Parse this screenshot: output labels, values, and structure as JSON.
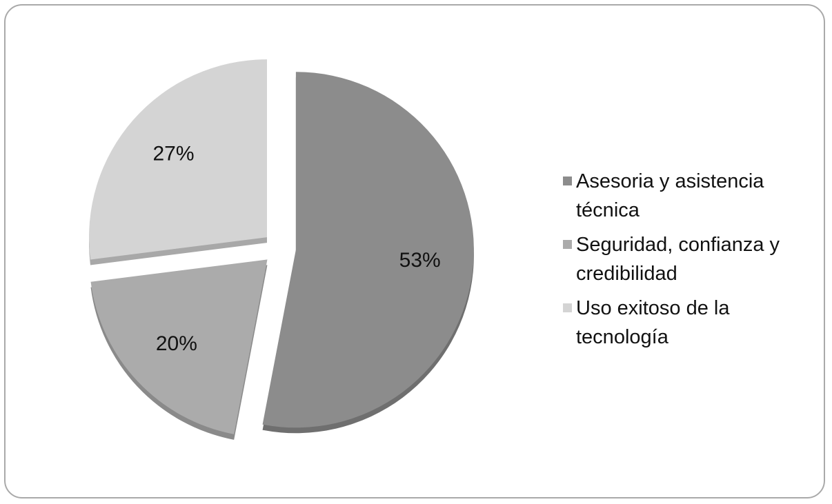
{
  "chart_data": {
    "type": "pie",
    "slices": [
      {
        "name": "Asesoria y asistencia técnica",
        "value": 53,
        "label": "53%",
        "color": "#8c8c8c",
        "side_color": "#6f6f6f"
      },
      {
        "name": "Seguridad, confianza y credibilidad",
        "value": 20,
        "label": "20%",
        "color": "#ababab",
        "side_color": "#8a8a8a"
      },
      {
        "name": "Uso exitoso de la tecnología",
        "value": 27,
        "label": "27%",
        "color": "#d4d4d4",
        "side_color": "#a8a8a8"
      }
    ],
    "legend_position": "right",
    "exploded": true
  },
  "legend": {
    "items": [
      {
        "label": "Asesoria y asistencia técnica",
        "color": "#8c8c8c"
      },
      {
        "label": "Seguridad, confianza y credibilidad",
        "color": "#ababab"
      },
      {
        "label": "Uso exitoso de la tecnología",
        "color": "#d4d4d4"
      }
    ]
  }
}
